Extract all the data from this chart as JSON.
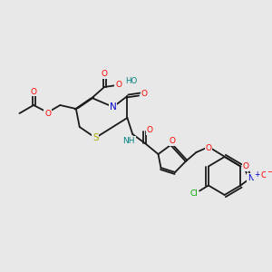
{
  "bg_color": "#e8e8e8",
  "bond_color": "#1a1a1a",
  "atom_colors": {
    "O": "#ff0000",
    "N": "#0000cc",
    "S": "#aaaa00",
    "Cl": "#00aa00",
    "H": "#008080",
    "C": "#1a1a1a",
    "plus": "#0000cc",
    "minus": "#ff0000"
  },
  "lw": 1.3
}
